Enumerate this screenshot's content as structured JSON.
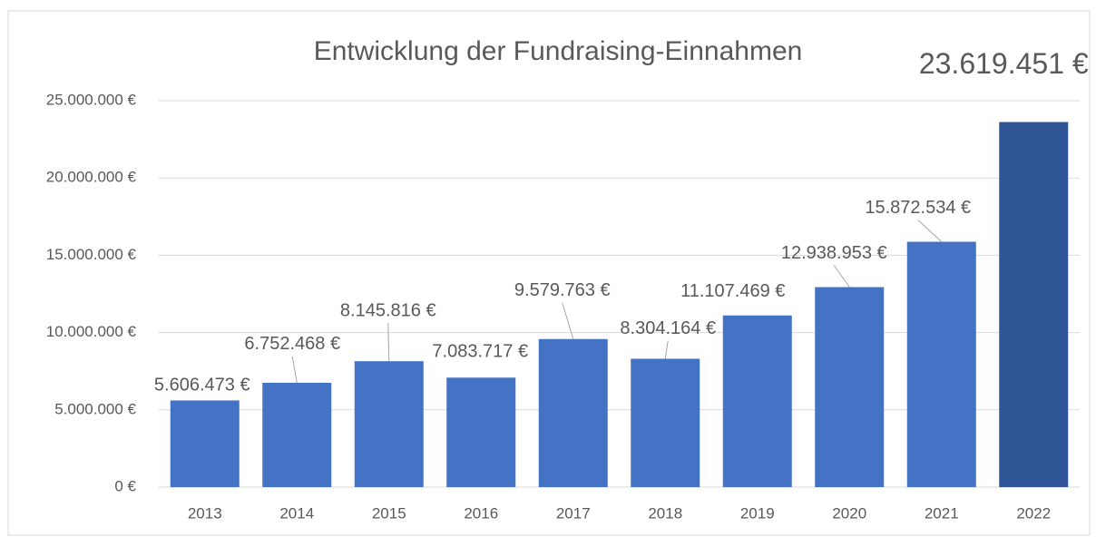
{
  "chart_data": {
    "type": "bar",
    "title": "Entwicklung der Fundraising-Einnahmen",
    "categories": [
      "2013",
      "2014",
      "2015",
      "2016",
      "2017",
      "2018",
      "2019",
      "2020",
      "2021",
      "2022"
    ],
    "values": [
      5606473,
      6752468,
      8145816,
      7083717,
      9579763,
      8304164,
      11107469,
      12938953,
      15872534,
      23619451
    ],
    "value_labels": [
      "5.606.473 €",
      "6.752.468 €",
      "8.145.816 €",
      "7.083.717 €",
      "9.579.763 €",
      "8.304.164 €",
      "11.107.469 €",
      "12.938.953 €",
      "15.872.534 €",
      "23.619.451 €"
    ],
    "colors": [
      "#4472c4",
      "#4472c4",
      "#4472c4",
      "#4472c4",
      "#4472c4",
      "#4472c4",
      "#4472c4",
      "#4472c4",
      "#4472c4",
      "#2f5597"
    ],
    "ylim": [
      0,
      25000000
    ],
    "yticks": [
      {
        "value": 0,
        "label": "0 €"
      },
      {
        "value": 5000000,
        "label": "5.000.000 €"
      },
      {
        "value": 10000000,
        "label": "10.000.000 €"
      },
      {
        "value": 15000000,
        "label": "15.000.000 €"
      },
      {
        "value": 20000000,
        "label": "20.000.000 €"
      },
      {
        "value": 25000000,
        "label": "25.000.000 €"
      }
    ],
    "grid": true
  }
}
